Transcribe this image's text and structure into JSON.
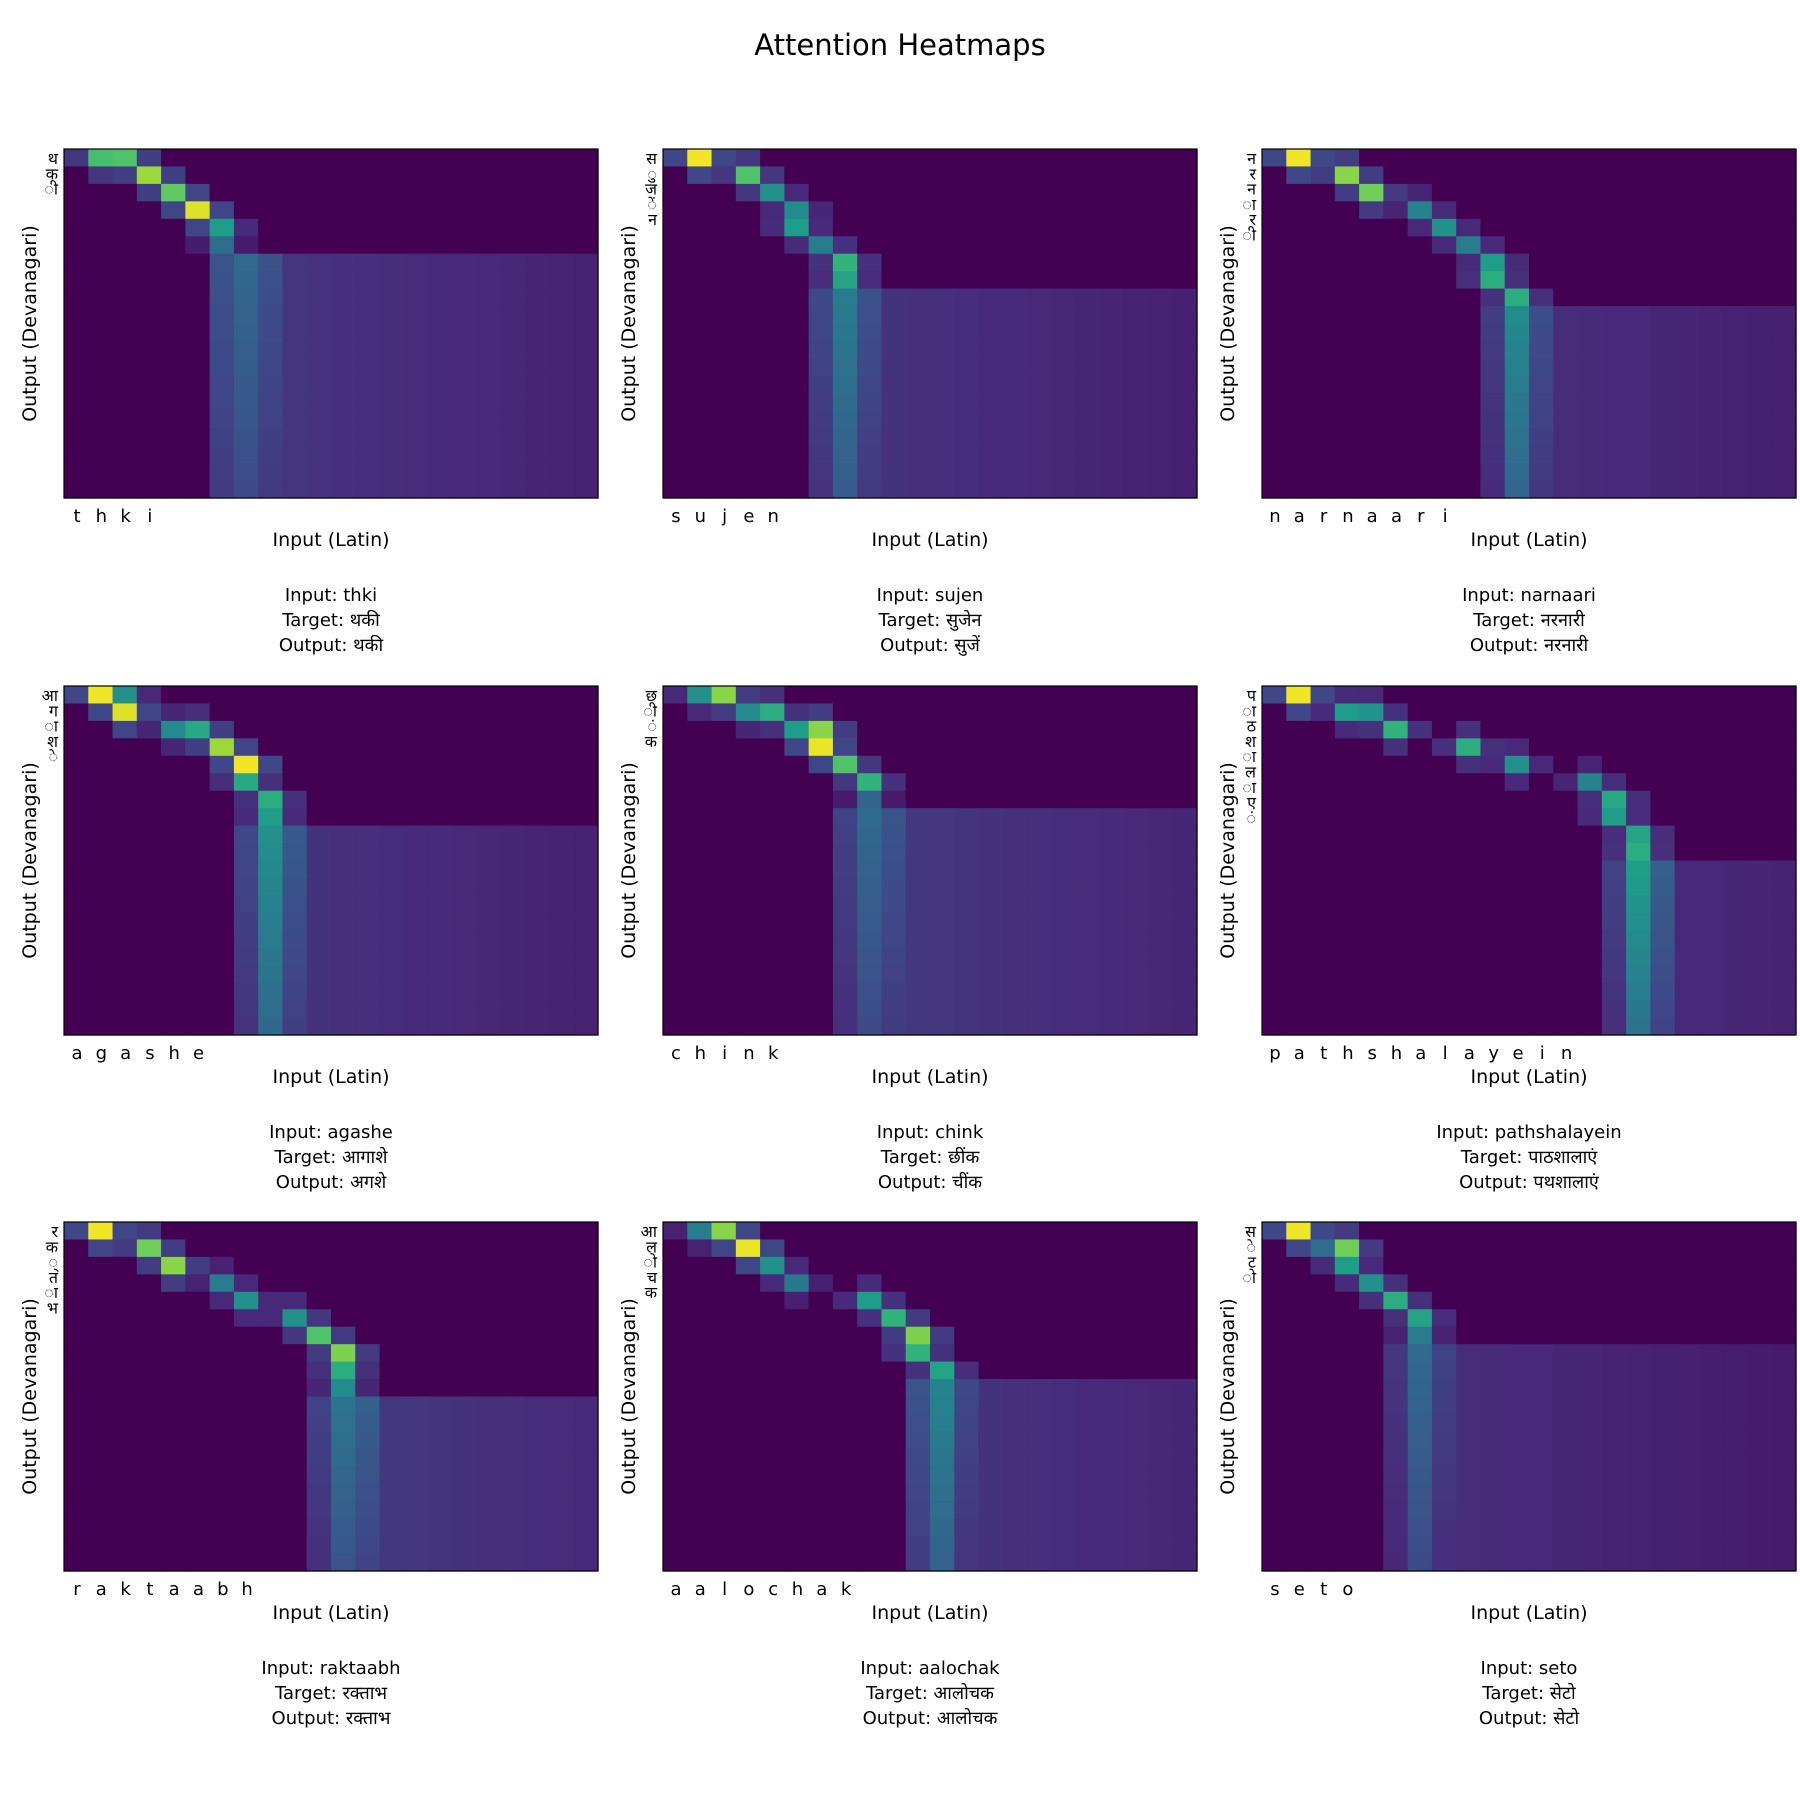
{
  "figure": {
    "title": "Attention Heatmaps"
  },
  "colormap": {
    "name": "viridis",
    "stops": [
      "#440154",
      "#482878",
      "#3e4989",
      "#31688e",
      "#26828e",
      "#1f9e89",
      "#35b779",
      "#6ece58",
      "#b5de2b",
      "#fde725"
    ]
  },
  "chart_data": [
    {
      "type": "heatmap",
      "xlabel": "Input (Latin)",
      "ylabel": "Output (Devanagari)",
      "x_ticks": [
        "t",
        "h",
        "k",
        "i"
      ],
      "y_ticks": [
        "थ",
        "क",
        "ी"
      ],
      "input_label": "Input: thki",
      "target_label": "Target: थकी",
      "output_label": "Output: थकी",
      "grid": {
        "rows": 20,
        "cols": 22
      },
      "path": [
        [
          0,
          1,
          0.7
        ],
        [
          0,
          2,
          0.72
        ],
        [
          1,
          3,
          0.85
        ],
        [
          2,
          4,
          0.75
        ],
        [
          3,
          5,
          0.95
        ],
        [
          4,
          6,
          0.55
        ],
        [
          5,
          6,
          0.35
        ],
        [
          6,
          7,
          0.32
        ],
        [
          7,
          7,
          0.3
        ]
      ],
      "stream": {
        "start_row": 6,
        "cols": [
          6,
          7,
          8
        ],
        "weights": [
          0.26,
          0.34,
          0.25
        ],
        "tail": 0.16
      }
    },
    {
      "type": "heatmap",
      "xlabel": "Input (Latin)",
      "ylabel": "Output (Devanagari)",
      "x_ticks": [
        "s",
        "u",
        "j",
        "e",
        "n"
      ],
      "y_ticks": [
        "स",
        "ु",
        "ज",
        "ें",
        "न"
      ],
      "input_label": "Input: sujen",
      "target_label": "Target: सुजेन",
      "output_label": "Output: सुजें",
      "grid": {
        "rows": 20,
        "cols": 22
      },
      "path": [
        [
          0,
          1,
          0.98
        ],
        [
          1,
          3,
          0.72
        ],
        [
          2,
          4,
          0.5
        ],
        [
          3,
          5,
          0.48
        ],
        [
          4,
          5,
          0.55
        ],
        [
          5,
          6,
          0.42
        ],
        [
          6,
          7,
          0.65
        ],
        [
          7,
          7,
          0.58
        ]
      ],
      "stream": {
        "start_row": 8,
        "cols": [
          6,
          7,
          8
        ],
        "weights": [
          0.22,
          0.42,
          0.25
        ],
        "tail": 0.15
      }
    },
    {
      "type": "heatmap",
      "xlabel": "Input (Latin)",
      "ylabel": "Output (Devanagari)",
      "x_ticks": [
        "n",
        "a",
        "r",
        "n",
        "a",
        "a",
        "r",
        "i"
      ],
      "y_ticks": [
        "न",
        "र",
        "न",
        "ा",
        "र",
        "ी"
      ],
      "input_label": "Input: narnaari",
      "target_label": "Target: नरनारी",
      "output_label": "Output: नरनारी",
      "grid": {
        "rows": 20,
        "cols": 22
      },
      "path": [
        [
          0,
          1,
          0.98
        ],
        [
          1,
          3,
          0.82
        ],
        [
          2,
          4,
          0.78
        ],
        [
          3,
          6,
          0.45
        ],
        [
          4,
          7,
          0.5
        ],
        [
          5,
          8,
          0.42
        ],
        [
          6,
          9,
          0.55
        ],
        [
          7,
          9,
          0.62
        ],
        [
          8,
          10,
          0.62
        ]
      ],
      "stream": {
        "start_row": 9,
        "cols": [
          9,
          10,
          11
        ],
        "weights": [
          0.18,
          0.48,
          0.24
        ],
        "tail": 0.13
      }
    },
    {
      "type": "heatmap",
      "xlabel": "Input (Latin)",
      "ylabel": "Output (Devanagari)",
      "x_ticks": [
        "a",
        "g",
        "a",
        "s",
        "h",
        "e"
      ],
      "y_ticks": [
        "आ",
        "ग",
        "ा",
        "श",
        "े"
      ],
      "input_label": "Input: agashe",
      "target_label": "Target: आगाशे",
      "output_label": "Output: अगशे",
      "grid": {
        "rows": 20,
        "cols": 22
      },
      "path": [
        [
          0,
          1,
          0.98
        ],
        [
          0,
          2,
          0.5
        ],
        [
          1,
          2,
          0.95
        ],
        [
          2,
          4,
          0.48
        ],
        [
          2,
          5,
          0.6
        ],
        [
          3,
          6,
          0.85
        ],
        [
          4,
          7,
          0.98
        ],
        [
          5,
          7,
          0.6
        ],
        [
          6,
          8,
          0.62
        ],
        [
          7,
          8,
          0.55
        ]
      ],
      "stream": {
        "start_row": 8,
        "cols": [
          7,
          8,
          9
        ],
        "weights": [
          0.22,
          0.5,
          0.28
        ],
        "tail": 0.15
      }
    },
    {
      "type": "heatmap",
      "xlabel": "Input (Latin)",
      "ylabel": "Output (Devanagari)",
      "x_ticks": [
        "c",
        "h",
        "i",
        "n",
        "k"
      ],
      "y_ticks": [
        "छ",
        "ी",
        "ं",
        "क"
      ],
      "input_label": "Input: chink",
      "target_label": "Target: छींक",
      "output_label": "Output: चींक",
      "grid": {
        "rows": 20,
        "cols": 22
      },
      "path": [
        [
          0,
          1,
          0.5
        ],
        [
          0,
          2,
          0.82
        ],
        [
          1,
          3,
          0.48
        ],
        [
          1,
          4,
          0.62
        ],
        [
          2,
          5,
          0.55
        ],
        [
          2,
          6,
          0.82
        ],
        [
          3,
          6,
          0.97
        ],
        [
          4,
          7,
          0.72
        ],
        [
          5,
          8,
          0.65
        ],
        [
          6,
          8,
          0.32
        ]
      ],
      "stream": {
        "start_row": 7,
        "cols": [
          7,
          8,
          9
        ],
        "weights": [
          0.2,
          0.34,
          0.26
        ],
        "tail": 0.17
      }
    },
    {
      "type": "heatmap",
      "xlabel": "Input (Latin)",
      "ylabel": "Output (Devanagari)",
      "x_ticks": [
        "p",
        "a",
        "t",
        "h",
        "s",
        "h",
        "a",
        "l",
        "a",
        "y",
        "e",
        "i",
        "n"
      ],
      "y_ticks": [
        "प",
        "ा",
        "ठ",
        "श",
        "ा",
        "ल",
        "ा",
        "ए",
        "ं"
      ],
      "input_label": "Input: pathshalayein",
      "target_label": "Target: पाठशालाएं",
      "output_label": "Output: पथशालाएं",
      "grid": {
        "rows": 20,
        "cols": 22
      },
      "path": [
        [
          0,
          1,
          0.98
        ],
        [
          1,
          3,
          0.55
        ],
        [
          1,
          4,
          0.52
        ],
        [
          2,
          5,
          0.65
        ],
        [
          3,
          8,
          0.62
        ],
        [
          4,
          10,
          0.5
        ],
        [
          5,
          13,
          0.45
        ],
        [
          6,
          14,
          0.6
        ],
        [
          7,
          14,
          0.55
        ],
        [
          8,
          15,
          0.58
        ],
        [
          9,
          15,
          0.62
        ]
      ],
      "stream": {
        "start_row": 10,
        "cols": [
          14,
          15,
          16
        ],
        "weights": [
          0.2,
          0.56,
          0.3
        ],
        "tail": 0.12
      }
    },
    {
      "type": "heatmap",
      "xlabel": "Input (Latin)",
      "ylabel": "Output (Devanagari)",
      "x_ticks": [
        "r",
        "a",
        "k",
        "t",
        "a",
        "a",
        "b",
        "h"
      ],
      "y_ticks": [
        "र",
        "क",
        "्",
        "त",
        "ा",
        "भ"
      ],
      "input_label": "Input: raktaabh",
      "target_label": "Target: रक्ताभ",
      "output_label": "Output: रक्ताभ",
      "grid": {
        "rows": 20,
        "cols": 22
      },
      "path": [
        [
          0,
          1,
          0.98
        ],
        [
          1,
          3,
          0.78
        ],
        [
          2,
          4,
          0.82
        ],
        [
          3,
          6,
          0.42
        ],
        [
          4,
          7,
          0.5
        ],
        [
          5,
          9,
          0.5
        ],
        [
          6,
          10,
          0.72
        ],
        [
          7,
          11,
          0.8
        ],
        [
          8,
          11,
          0.62
        ],
        [
          9,
          11,
          0.48
        ]
      ],
      "stream": {
        "start_row": 10,
        "cols": [
          10,
          11,
          12
        ],
        "weights": [
          0.2,
          0.38,
          0.3
        ],
        "tail": 0.17
      }
    },
    {
      "type": "heatmap",
      "xlabel": "Input (Latin)",
      "ylabel": "Output (Devanagari)",
      "x_ticks": [
        "a",
        "a",
        "l",
        "o",
        "c",
        "h",
        "a",
        "k"
      ],
      "y_ticks": [
        "आ",
        "ल",
        "ो",
        "च",
        "क"
      ],
      "input_label": "Input: aalochak",
      "target_label": "Target: आलोचक",
      "output_label": "Output: आलोचक",
      "grid": {
        "rows": 20,
        "cols": 22
      },
      "path": [
        [
          0,
          1,
          0.42
        ],
        [
          0,
          2,
          0.82
        ],
        [
          1,
          3,
          0.97
        ],
        [
          2,
          4,
          0.5
        ],
        [
          3,
          5,
          0.4
        ],
        [
          4,
          8,
          0.55
        ],
        [
          5,
          9,
          0.65
        ],
        [
          6,
          10,
          0.8
        ],
        [
          7,
          10,
          0.65
        ],
        [
          8,
          11,
          0.58
        ]
      ],
      "stream": {
        "start_row": 9,
        "cols": [
          10,
          11,
          12
        ],
        "weights": [
          0.26,
          0.45,
          0.22
        ],
        "tail": 0.15
      }
    },
    {
      "type": "heatmap",
      "xlabel": "Input (Latin)",
      "ylabel": "Output (Devanagari)",
      "x_ticks": [
        "s",
        "e",
        "t",
        "o"
      ],
      "y_ticks": [
        "स",
        "े",
        "ट",
        "ो"
      ],
      "input_label": "Input: seto",
      "target_label": "Target: सेटो",
      "output_label": "Output: सेटो",
      "grid": {
        "rows": 20,
        "cols": 22
      },
      "path": [
        [
          0,
          1,
          0.98
        ],
        [
          1,
          2,
          0.35
        ],
        [
          1,
          3,
          0.78
        ],
        [
          2,
          3,
          0.55
        ],
        [
          3,
          4,
          0.5
        ],
        [
          4,
          5,
          0.62
        ],
        [
          5,
          6,
          0.58
        ],
        [
          6,
          6,
          0.42
        ],
        [
          7,
          6,
          0.32
        ]
      ],
      "stream": {
        "start_row": 7,
        "cols": [
          5,
          6,
          7
        ],
        "weights": [
          0.16,
          0.34,
          0.2
        ],
        "tail": 0.13
      }
    }
  ]
}
